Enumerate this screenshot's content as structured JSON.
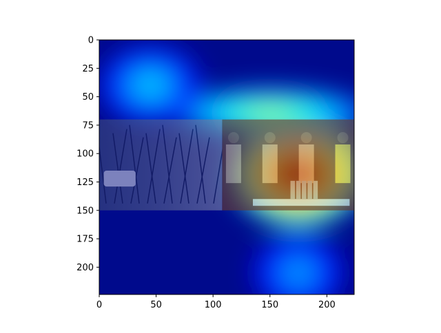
{
  "chart_data": {
    "type": "heatmap",
    "title": "",
    "xlabel": "",
    "ylabel": "",
    "xlim": [
      0,
      224
    ],
    "ylim": [
      224,
      0
    ],
    "x_ticks": [
      0,
      50,
      100,
      150,
      200
    ],
    "y_ticks": [
      0,
      25,
      50,
      75,
      100,
      125,
      150,
      175,
      200
    ],
    "colormap": "jet",
    "overlay_alpha": 0.55,
    "grid": false,
    "photo_band": {
      "y_range": [
        70,
        150
      ],
      "x_range": [
        0,
        224
      ],
      "left_scene": "bare trees with a parked car",
      "right_scene": "people at a table with canned goods"
    },
    "hotspots": [
      {
        "name": "primary",
        "cx": 175,
        "cy": 118,
        "rx": 58,
        "ry": 46,
        "intensity": 1.0
      },
      {
        "name": "upper-band",
        "cx": 150,
        "cy": 64,
        "rx": 90,
        "ry": 22,
        "intensity": 0.55
      },
      {
        "name": "left-mid",
        "cx": 45,
        "cy": 40,
        "rx": 45,
        "ry": 35,
        "intensity": 0.35
      },
      {
        "name": "bottom-center",
        "cx": 175,
        "cy": 205,
        "rx": 40,
        "ry": 35,
        "intensity": 0.3
      }
    ]
  }
}
